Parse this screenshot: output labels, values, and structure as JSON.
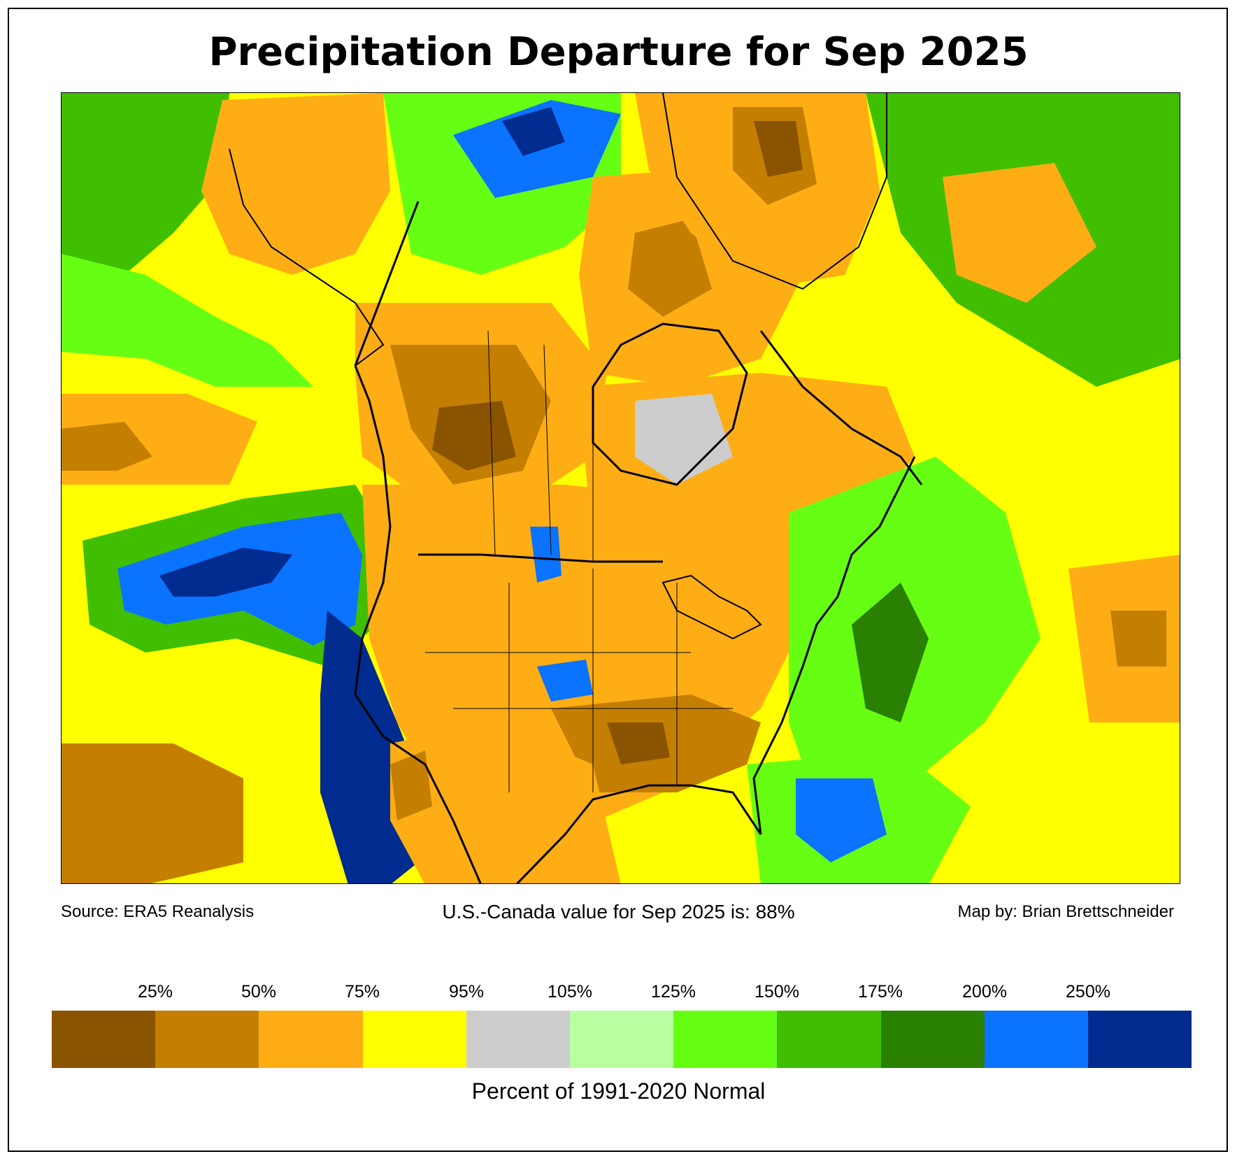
{
  "title": "Precipitation Departure for Sep 2025",
  "footer": {
    "source": "Source: ERA5 Reanalysis",
    "summary": "U.S.-Canada value for Sep 2025 is: 88%",
    "credit": "Map by: Brian Brettschneider"
  },
  "legend": {
    "tick_labels": [
      "25%",
      "50%",
      "75%",
      "95%",
      "105%",
      "125%",
      "150%",
      "175%",
      "200%",
      "250%"
    ],
    "colors": [
      "#8a5300",
      "#c47f00",
      "#ffad14",
      "#ffff00",
      "#cccccc",
      "#b7ffa1",
      "#66ff14",
      "#3fbf00",
      "#2a8000",
      "#0a73ff",
      "#002b8f"
    ],
    "unit_label": "Percent of 1991-2020 Normal"
  },
  "palette": {
    "very_dry": "#8a5300",
    "dry": "#c47f00",
    "moderately_dry": "#ffad14",
    "slightly_dry": "#ffff00",
    "near_normal": "#cccccc",
    "slightly_wet": "#b7ffa1",
    "wet": "#66ff14",
    "wetter": "#3fbf00",
    "much_wetter": "#2a8000",
    "very_wet": "#0a73ff",
    "extremely_wet": "#002b8f"
  }
}
